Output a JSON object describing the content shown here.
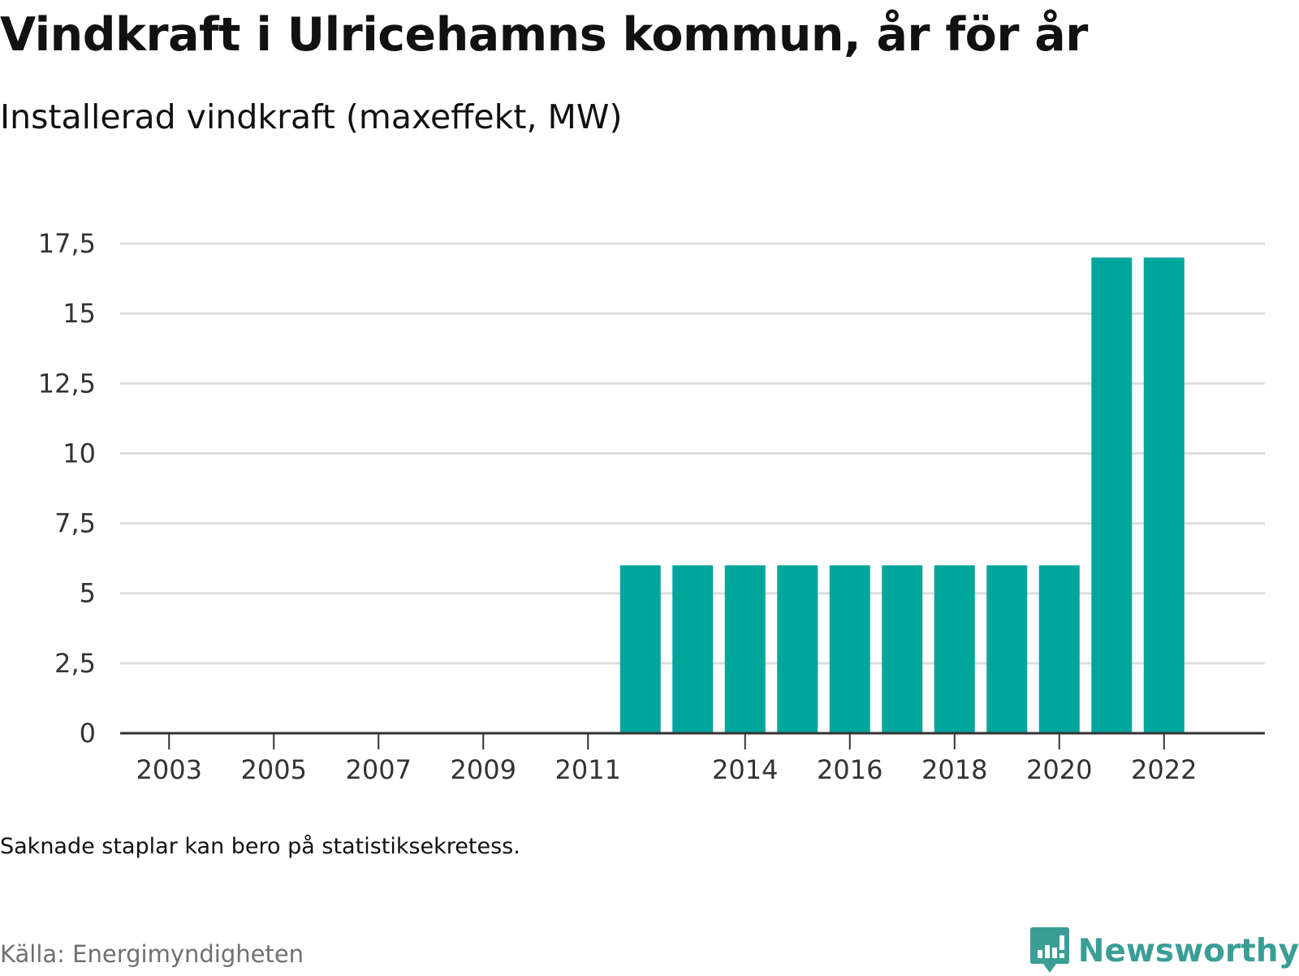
{
  "header": {
    "title": "Vindkraft i Ulricehamns kommun, år för år",
    "subtitle": "Installerad vindkraft (maxeffekt, MW)"
  },
  "footer": {
    "note": "Saknade staplar kan bero på statistiksekretess.",
    "source": "Källa: Energimyndigheten",
    "brand": "Newsworthy"
  },
  "colors": {
    "bar": "#00a59b",
    "brand": "#3a9e96",
    "grid": "#dddddd",
    "axis": "#333333"
  },
  "chart_data": {
    "type": "bar",
    "title": "Vindkraft i Ulricehamns kommun, år för år",
    "subtitle": "Installerad vindkraft (maxeffekt, MW)",
    "categories": [
      "2003",
      "2004",
      "2005",
      "2006",
      "2007",
      "2008",
      "2009",
      "2010",
      "2011",
      "2012",
      "2013",
      "2014",
      "2015",
      "2016",
      "2017",
      "2018",
      "2019",
      "2020",
      "2021",
      "2022"
    ],
    "values": [
      null,
      null,
      null,
      null,
      null,
      null,
      null,
      null,
      null,
      6,
      6,
      6,
      6,
      6,
      6,
      6,
      6,
      6,
      17,
      17
    ],
    "x_tick_labels": [
      "2003",
      "2005",
      "2007",
      "2009",
      "2011",
      "2014",
      "2016",
      "2018",
      "2020",
      "2022"
    ],
    "y_ticks": [
      0,
      2.5,
      5,
      7.5,
      10,
      12.5,
      15,
      17.5
    ],
    "y_tick_labels": [
      "0",
      "2,5",
      "5",
      "7,5",
      "10",
      "12,5",
      "15",
      "17,5"
    ],
    "ylim": [
      0,
      17.5
    ],
    "xlabel": "",
    "ylabel": "",
    "grid": true,
    "legend": "none"
  }
}
